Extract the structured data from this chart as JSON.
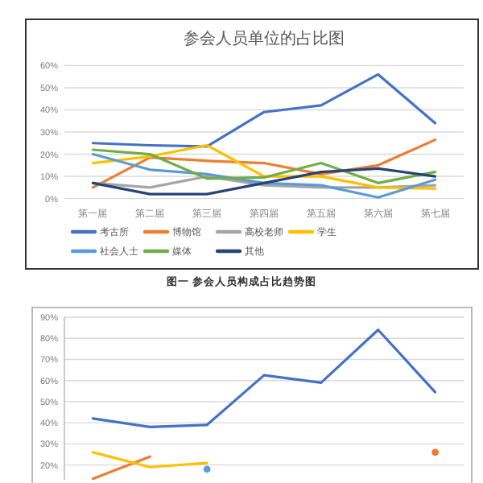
{
  "chart_data": [
    {
      "type": "line",
      "title": "参会人员单位的占比图",
      "categories": [
        "第一届",
        "第二届",
        "第三届",
        "第四届",
        "第五届",
        "第六届",
        "第七届"
      ],
      "ylim": [
        0,
        60
      ],
      "yticks": [
        {
          "value": 0,
          "label": "0%"
        },
        {
          "value": 10,
          "label": "10%"
        },
        {
          "value": 20,
          "label": "20%"
        },
        {
          "value": 30,
          "label": "30%"
        },
        {
          "value": 40,
          "label": "40%"
        },
        {
          "value": 50,
          "label": "50%"
        },
        {
          "value": 60,
          "label": "60%"
        }
      ],
      "grid": "y",
      "legend": "bottom",
      "annotations": [
        "图一 参会人员构成占比趋势图"
      ],
      "series": [
        {
          "name": "考古所",
          "color": "#4472c4",
          "values": [
            25,
            24,
            23.5,
            39,
            42,
            56,
            34
          ]
        },
        {
          "name": "博物馆",
          "color": "#ed7d31",
          "values": [
            5,
            18.5,
            17,
            16,
            11,
            15,
            26.5
          ]
        },
        {
          "name": "高校老师",
          "color": "#a5a5a5",
          "values": [
            7,
            5,
            10,
            6,
            5,
            5,
            6
          ]
        },
        {
          "name": "学生",
          "color": "#ffc000",
          "values": [
            16,
            19,
            24,
            10,
            10,
            5,
            4.5
          ]
        },
        {
          "name": "社会人士",
          "color": "#5b9bd5",
          "values": [
            20,
            13,
            11,
            7,
            6,
            0.5,
            8.5
          ]
        },
        {
          "name": "媒体",
          "color": "#70ad47",
          "values": [
            22,
            20,
            9,
            9.5,
            16,
            7,
            12
          ]
        },
        {
          "name": "其他",
          "color": "#264478",
          "values": [
            7,
            2,
            2,
            7,
            12,
            13.5,
            10
          ]
        }
      ]
    },
    {
      "type": "line",
      "categories": [
        null,
        null,
        null,
        null,
        null,
        null,
        null
      ],
      "ylim": [
        13,
        90
      ],
      "yticks": [
        {
          "value": 20,
          "label": "20%"
        },
        {
          "value": 30,
          "label": "30%"
        },
        {
          "value": 40,
          "label": "40%"
        },
        {
          "value": 50,
          "label": "50%"
        },
        {
          "value": 60,
          "label": "60%"
        },
        {
          "value": 70,
          "label": "70%"
        },
        {
          "value": 80,
          "label": "80%"
        },
        {
          "value": 90,
          "label": "90%"
        }
      ],
      "grid": "y",
      "series": [
        {
          "color": "#4472c4",
          "values": [
            42,
            38,
            39,
            62.5,
            59,
            84,
            54.5
          ]
        },
        {
          "color": "#ed7d31",
          "values": [
            13.5,
            24,
            null,
            null,
            null,
            null,
            26
          ]
        },
        {
          "color": "#ffc000",
          "values": [
            26,
            19,
            21,
            null,
            null,
            null,
            null
          ]
        },
        {
          "color": "#5b9bd5",
          "marker": "circle",
          "values": [
            null,
            null,
            18,
            null,
            null,
            null,
            null
          ]
        }
      ]
    }
  ]
}
